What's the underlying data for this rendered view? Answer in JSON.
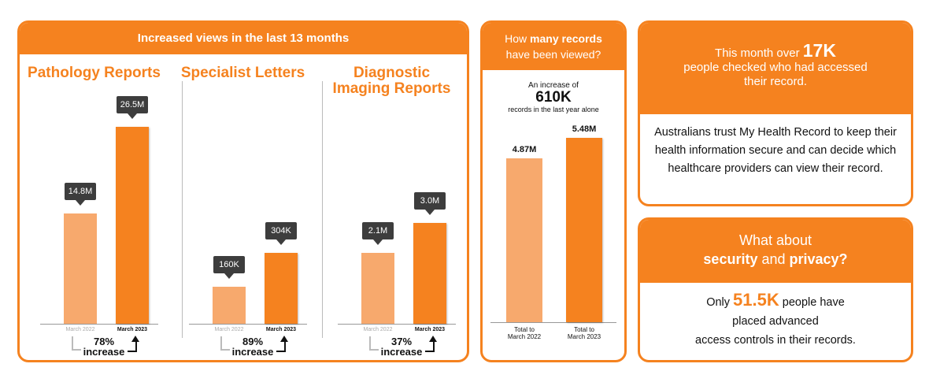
{
  "panel1": {
    "header": "Increased views in the last 13 months",
    "charts": [
      {
        "title_lines": [
          "Pathology Reports"
        ],
        "increase_value": "78%",
        "increase_word": "increase",
        "labels": [
          "14.8M",
          "26.5M"
        ],
        "categories": [
          "March 2022",
          "March 2023"
        ]
      },
      {
        "title_lines": [
          "Specialist Letters"
        ],
        "increase_value": "89%",
        "increase_word": "increase",
        "labels": [
          "160K",
          "304K"
        ],
        "categories": [
          "March 2022",
          "March 2023"
        ]
      },
      {
        "title_lines": [
          "Diagnostic",
          "Imaging Reports"
        ],
        "increase_value": "37%",
        "increase_word": "increase",
        "labels": [
          "2.1M",
          "3.0M"
        ],
        "categories": [
          "March 2022",
          "March 2023"
        ]
      }
    ]
  },
  "panel2": {
    "header_pre": "How ",
    "header_bold": "many records",
    "header_post": "have been viewed?",
    "increase_pre": "An increase of",
    "increase_value": "610K",
    "increase_post": "records in the last year alone",
    "labels": [
      "4.87M",
      "5.48M"
    ],
    "categories": [
      [
        "Total to",
        "March 2022"
      ],
      [
        "Total to",
        "March 2023"
      ]
    ]
  },
  "panel3": {
    "header_pre": "This month over ",
    "header_value": "17K",
    "header_line2": "people checked who had accessed",
    "header_line3": "their record.",
    "body": "Australians trust My Health Record to keep their health information secure and can decide which healthcare providers can view their record."
  },
  "panel4": {
    "header_line1": "What about",
    "header_bold1": "security",
    "header_and": " and ",
    "header_bold2": "privacy?",
    "body_pre": "Only ",
    "body_value": "51.5K",
    "body_post": " people have",
    "body_line2": "placed advanced",
    "body_line3": "access controls in their records."
  },
  "colors": {
    "orange": "#f5821f",
    "light_orange": "#f7a96d",
    "label_bg": "#3d3d3d"
  },
  "chart_data": [
    {
      "type": "bar",
      "title": "Pathology Reports",
      "categories": [
        "March 2022",
        "March 2023"
      ],
      "values": [
        14.8,
        26.5
      ],
      "unit": "M"
    },
    {
      "type": "bar",
      "title": "Specialist Letters",
      "categories": [
        "March 2022",
        "March 2023"
      ],
      "values": [
        160,
        304
      ],
      "unit": "K"
    },
    {
      "type": "bar",
      "title": "Diagnostic Imaging Reports",
      "categories": [
        "March 2022",
        "March 2023"
      ],
      "values": [
        2.1,
        3.0
      ],
      "unit": "M"
    },
    {
      "type": "bar",
      "title": "How many records have been viewed?",
      "categories": [
        "Total to March 2022",
        "Total to March 2023"
      ],
      "values": [
        4.87,
        5.48
      ],
      "unit": "M"
    }
  ]
}
